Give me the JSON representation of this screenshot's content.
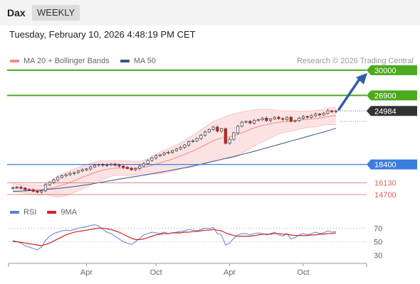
{
  "header": {
    "title": "Dax",
    "period": "WEEKLY"
  },
  "datetime": "Tuesday, February 10, 2026 4:48:19 PM CET",
  "legend_top": [
    {
      "label": "MA 20 + Bollinger Bands",
      "color": "#f08a8a"
    },
    {
      "label": "MA 50",
      "color": "#34568b"
    }
  ],
  "credit": "Research © 2026 Trading Central",
  "legend_bottom": [
    {
      "label": "RSI",
      "color": "#5b7fd6"
    },
    {
      "label": "9MA",
      "color": "#d62020"
    }
  ],
  "colors": {
    "resistance": "#4caa1e",
    "support": "#3b7de0",
    "support_strong": "#e06060",
    "last_price": "#333333",
    "arrow": "#2f5ea8"
  },
  "chart_data": [
    {
      "type": "candlestick",
      "last_price": 24984,
      "levels": [
        {
          "value": 30000,
          "label": "30000",
          "kind": "resistance"
        },
        {
          "value": 26900,
          "label": "26900",
          "kind": "resistance"
        },
        {
          "value": 18400,
          "label": "18400",
          "kind": "support"
        },
        {
          "value": 16130,
          "label": "16130",
          "kind": "support_strong"
        },
        {
          "value": 14700,
          "label": "14700",
          "kind": "support_strong"
        }
      ],
      "x_ticks": [
        "Apr",
        "Oct",
        "Apr",
        "Oct"
      ],
      "ylim": [
        14000,
        30600
      ],
      "closes": [
        15550,
        15600,
        15500,
        15300,
        15250,
        15100,
        15000,
        15150,
        15900,
        16200,
        16500,
        16800,
        17000,
        17150,
        17300,
        17400,
        17600,
        17750,
        17850,
        18100,
        18300,
        18400,
        18300,
        18350,
        18450,
        18300,
        18200,
        18050,
        17900,
        17750,
        17900,
        18200,
        18500,
        18900,
        19200,
        19450,
        19600,
        19800,
        19900,
        20100,
        20300,
        20500,
        20800,
        21200,
        21300,
        21600,
        22000,
        22400,
        22700,
        23000,
        22500,
        22800,
        21000,
        21500,
        22300,
        23100,
        23600,
        23700,
        23500,
        23800,
        23900,
        24100,
        23800,
        24000,
        24200,
        24050,
        23950,
        24200,
        23700,
        23800,
        24100,
        24300,
        24200,
        24400,
        24600,
        24500,
        24700,
        25000,
        24900,
        24984
      ],
      "bollinger_mid": [
        15500,
        15500,
        15450,
        15400,
        15350,
        15300,
        15250,
        15250,
        15350,
        15450,
        15550,
        15700,
        15850,
        16000,
        16200,
        16400,
        16600,
        16800,
        17000,
        17200,
        17400,
        17550,
        17700,
        17800,
        17900,
        17950,
        17950,
        17950,
        17950,
        17950,
        17950,
        18000,
        18050,
        18150,
        18300,
        18450,
        18600,
        18750,
        18900,
        19050,
        19250,
        19450,
        19650,
        19850,
        20050,
        20300,
        20550,
        20800,
        21050,
        21300,
        21500,
        21650,
        21700,
        21800,
        21950,
        22100,
        22300,
        22500,
        22700,
        22900,
        23050,
        23200,
        23300,
        23400,
        23500,
        23600,
        23650,
        23700,
        23750,
        23800,
        23850,
        23900,
        23950,
        24000,
        24050,
        24100,
        24200,
        24300,
        24350,
        24400
      ],
      "bollinger_upper": [
        16000,
        16000,
        15950,
        15950,
        15900,
        15900,
        15850,
        15850,
        16000,
        16300,
        16650,
        17000,
        17250,
        17450,
        17650,
        17850,
        18050,
        18250,
        18400,
        18550,
        18700,
        18800,
        18850,
        18850,
        18850,
        18850,
        18850,
        18850,
        18850,
        18800,
        18800,
        18800,
        18900,
        19100,
        19400,
        19700,
        19950,
        20150,
        20350,
        20550,
        20800,
        21050,
        21350,
        21700,
        22000,
        22300,
        22650,
        23000,
        23350,
        23700,
        23900,
        24100,
        24300,
        24500,
        24650,
        24750,
        24850,
        24950,
        25050,
        25150,
        25150,
        25200,
        25200,
        25150,
        25100,
        25050,
        25000,
        25000,
        25000,
        25000,
        24950,
        24950,
        24950,
        25000,
        25050,
        25100,
        25150,
        25300,
        25400,
        25500
      ],
      "bollinger_lower": [
        15000,
        15000,
        14950,
        14850,
        14800,
        14700,
        14650,
        14650,
        14700,
        14600,
        14450,
        14400,
        14450,
        14550,
        14750,
        14950,
        15150,
        15350,
        15600,
        15850,
        16100,
        16300,
        16550,
        16750,
        16950,
        17050,
        17050,
        17050,
        17050,
        17100,
        17100,
        17200,
        17200,
        17200,
        17200,
        17200,
        17250,
        17350,
        17450,
        17550,
        17700,
        17850,
        17950,
        18000,
        18100,
        18300,
        18450,
        18600,
        18750,
        18900,
        19100,
        19200,
        19100,
        19100,
        19250,
        19450,
        19750,
        20050,
        20350,
        20650,
        20950,
        21200,
        21400,
        21650,
        21900,
        22150,
        22300,
        22400,
        22500,
        22600,
        22750,
        22850,
        22950,
        23000,
        23050,
        23100,
        23250,
        23300,
        23300,
        23300
      ],
      "ma50": [
        15100,
        15100,
        15120,
        15150,
        15180,
        15200,
        15220,
        15250,
        15300,
        15350,
        15400,
        15450,
        15500,
        15560,
        15620,
        15680,
        15750,
        15820,
        15900,
        15980,
        16060,
        16150,
        16240,
        16330,
        16420,
        16510,
        16600,
        16680,
        16760,
        16840,
        16920,
        17000,
        17080,
        17170,
        17260,
        17350,
        17440,
        17530,
        17620,
        17710,
        17800,
        17900,
        18000,
        18100,
        18200,
        18300,
        18420,
        18540,
        18660,
        18780,
        18900,
        19020,
        19140,
        19260,
        19380,
        19500,
        19630,
        19760,
        19890,
        20020,
        20160,
        20300,
        20440,
        20580,
        20720,
        20860,
        21000,
        21140,
        21280,
        21420,
        21560,
        21700,
        21840,
        21980,
        22120,
        22260,
        22400,
        22550,
        22700,
        22850
      ]
    },
    {
      "type": "line",
      "series_names": [
        "RSI",
        "9MA"
      ],
      "y_ticks": [
        70,
        50,
        30
      ],
      "ylim": [
        20,
        85
      ],
      "guide_levels": [
        70,
        50
      ],
      "rsi": [
        52,
        50,
        48,
        44,
        42,
        40,
        38,
        42,
        52,
        58,
        62,
        64,
        66,
        67,
        66,
        68,
        70,
        71,
        72,
        74,
        75,
        73,
        68,
        64,
        62,
        58,
        54,
        50,
        48,
        46,
        50,
        55,
        60,
        62,
        64,
        63,
        62,
        64,
        62,
        63,
        64,
        65,
        66,
        68,
        67,
        66,
        68,
        70,
        69,
        71,
        62,
        60,
        45,
        48,
        55,
        60,
        62,
        62,
        60,
        62,
        63,
        62,
        60,
        62,
        64,
        60,
        58,
        62,
        54,
        56,
        60,
        62,
        60,
        62,
        64,
        62,
        63,
        66,
        64,
        65
      ],
      "ma9": [
        50,
        50,
        49,
        48,
        47,
        46,
        45,
        44,
        46,
        48,
        51,
        54,
        57,
        60,
        62,
        64,
        65,
        66,
        67,
        68,
        69,
        70,
        70,
        69,
        68,
        66,
        64,
        61,
        58,
        55,
        53,
        53,
        54,
        56,
        58,
        60,
        61,
        62,
        62,
        63,
        63,
        63,
        64,
        64,
        65,
        65,
        66,
        67,
        67,
        68,
        67,
        66,
        63,
        61,
        59,
        58,
        58,
        58,
        58,
        59,
        60,
        61,
        61,
        61,
        62,
        62,
        61,
        61,
        60,
        59,
        59,
        59,
        59,
        60,
        60,
        61,
        61,
        62,
        62,
        63
      ]
    }
  ]
}
